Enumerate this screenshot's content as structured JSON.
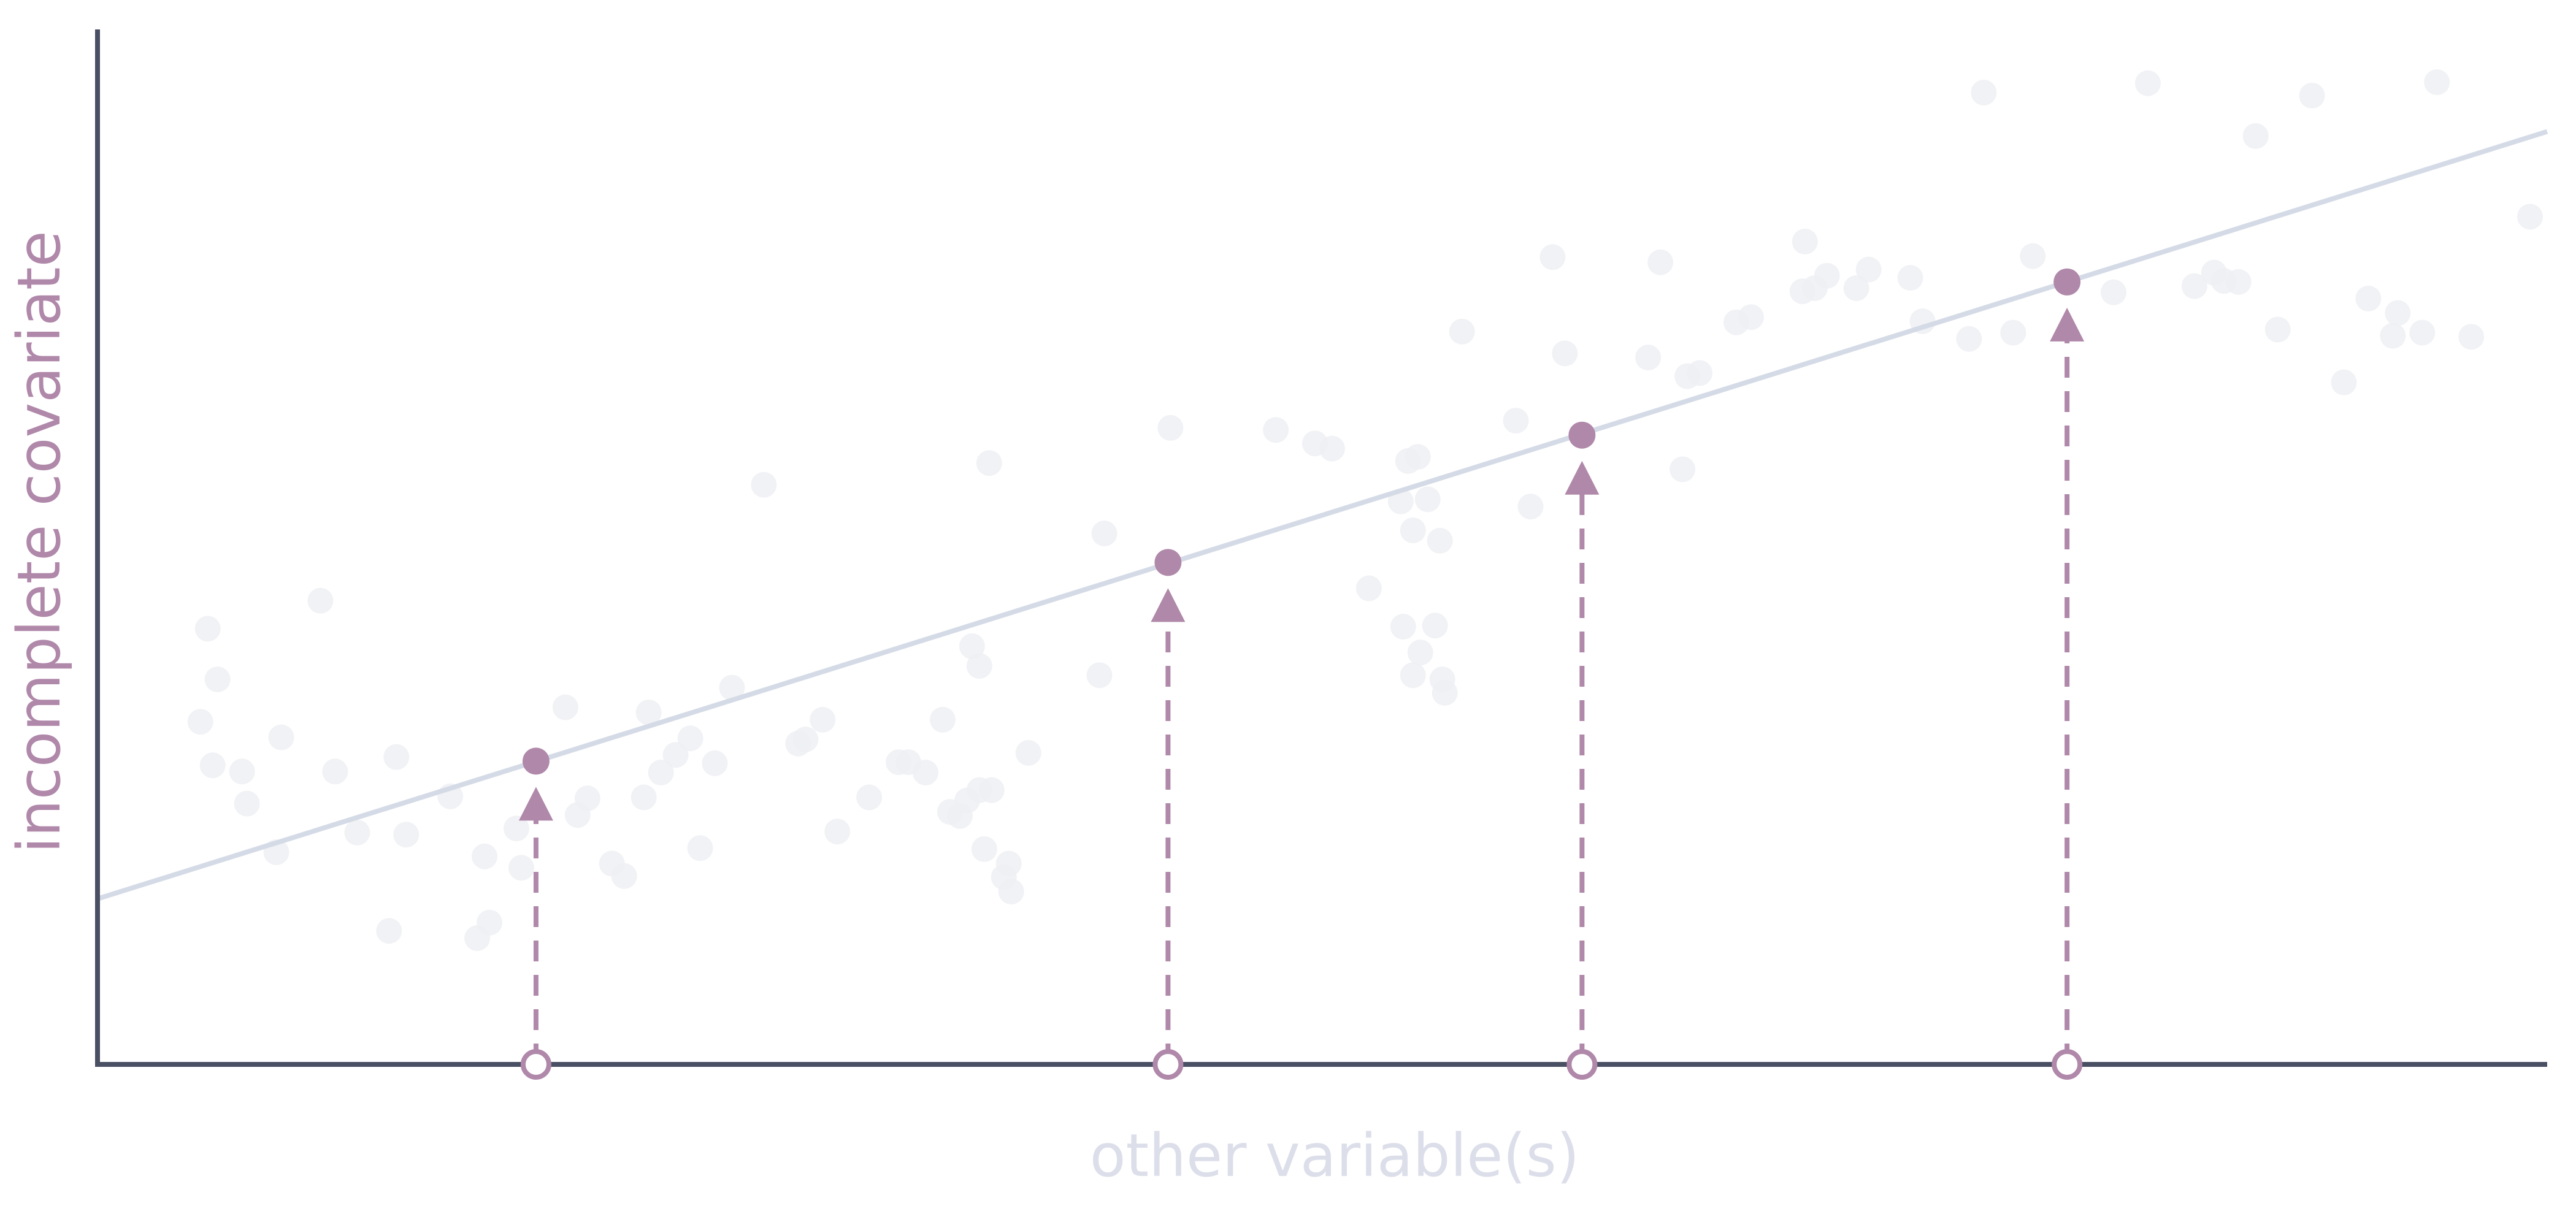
{
  "colors": {
    "axis": "#4a5064",
    "accent": "#b088aa",
    "regression_line": "#d5dbe6",
    "background_points": "#eef0f3",
    "xlabel": "#dcdfea"
  },
  "chart_data": {
    "type": "scatter",
    "xlabel": "other variable(s)",
    "ylabel": "incomplete covariate",
    "xlim": [
      0,
      1000
    ],
    "ylim": [
      0,
      1000
    ],
    "grid": false,
    "regression_line": {
      "intercept": 160,
      "slope": 0.7413
    },
    "observed_points": {
      "x": [
        45,
        49,
        42,
        59,
        47,
        75,
        73,
        61,
        106,
        119,
        97,
        122,
        126,
        91,
        144,
        155,
        173,
        158,
        160,
        171,
        191,
        200,
        196,
        210,
        215,
        223,
        225,
        236,
        230,
        246,
        242,
        259,
        289,
        272,
        296,
        286,
        302,
        252,
        315,
        327,
        338,
        345,
        331,
        355,
        348,
        372,
        365,
        352,
        360,
        362,
        370,
        373,
        380,
        364,
        357,
        360,
        409,
        411,
        438,
        481,
        497,
        504,
        519,
        533,
        537,
        540,
        546,
        549,
        550,
        539,
        532,
        537,
        535,
        548,
        543,
        557,
        579,
        585,
        599,
        594,
        633,
        638,
        649,
        654,
        647,
        669,
        675,
        696,
        697,
        718,
        706,
        701,
        740,
        745,
        723,
        770,
        764,
        782,
        823,
        790,
        837,
        856,
        864,
        890,
        868,
        874,
        904,
        917,
        927,
        937,
        939,
        949,
        955,
        969,
        993,
        881
      ],
      "y": [
        421,
        372,
        331,
        283,
        289,
        316,
        205,
        252,
        224,
        129,
        283,
        297,
        222,
        448,
        259,
        122,
        190,
        201,
        137,
        228,
        345,
        257,
        241,
        194,
        182,
        258,
        340,
        299,
        282,
        209,
        315,
        364,
        314,
        560,
        333,
        310,
        225,
        291,
        258,
        292,
        282,
        333,
        292,
        255,
        244,
        194,
        265,
        240,
        265,
        208,
        181,
        167,
        301,
        581,
        404,
        385,
        376,
        513,
        615,
        613,
        600,
        595,
        460,
        423,
        376,
        398,
        424,
        372,
        359,
        587,
        544,
        516,
        583,
        506,
        546,
        708,
        622,
        539,
        687,
        780,
        683,
        775,
        665,
        668,
        575,
        717,
        722,
        747,
        795,
        750,
        762,
        750,
        760,
        718,
        768,
        939,
        701,
        707,
        746,
        781,
        948,
        752,
        765,
        710,
        757,
        756,
        936,
        659,
        740,
        704,
        726,
        707,
        949,
        703,
        819,
        897
      ]
    },
    "imputed_points": {
      "x": [
        179,
        437,
        606,
        804
      ],
      "y": [
        293,
        485,
        608,
        756
      ]
    }
  }
}
